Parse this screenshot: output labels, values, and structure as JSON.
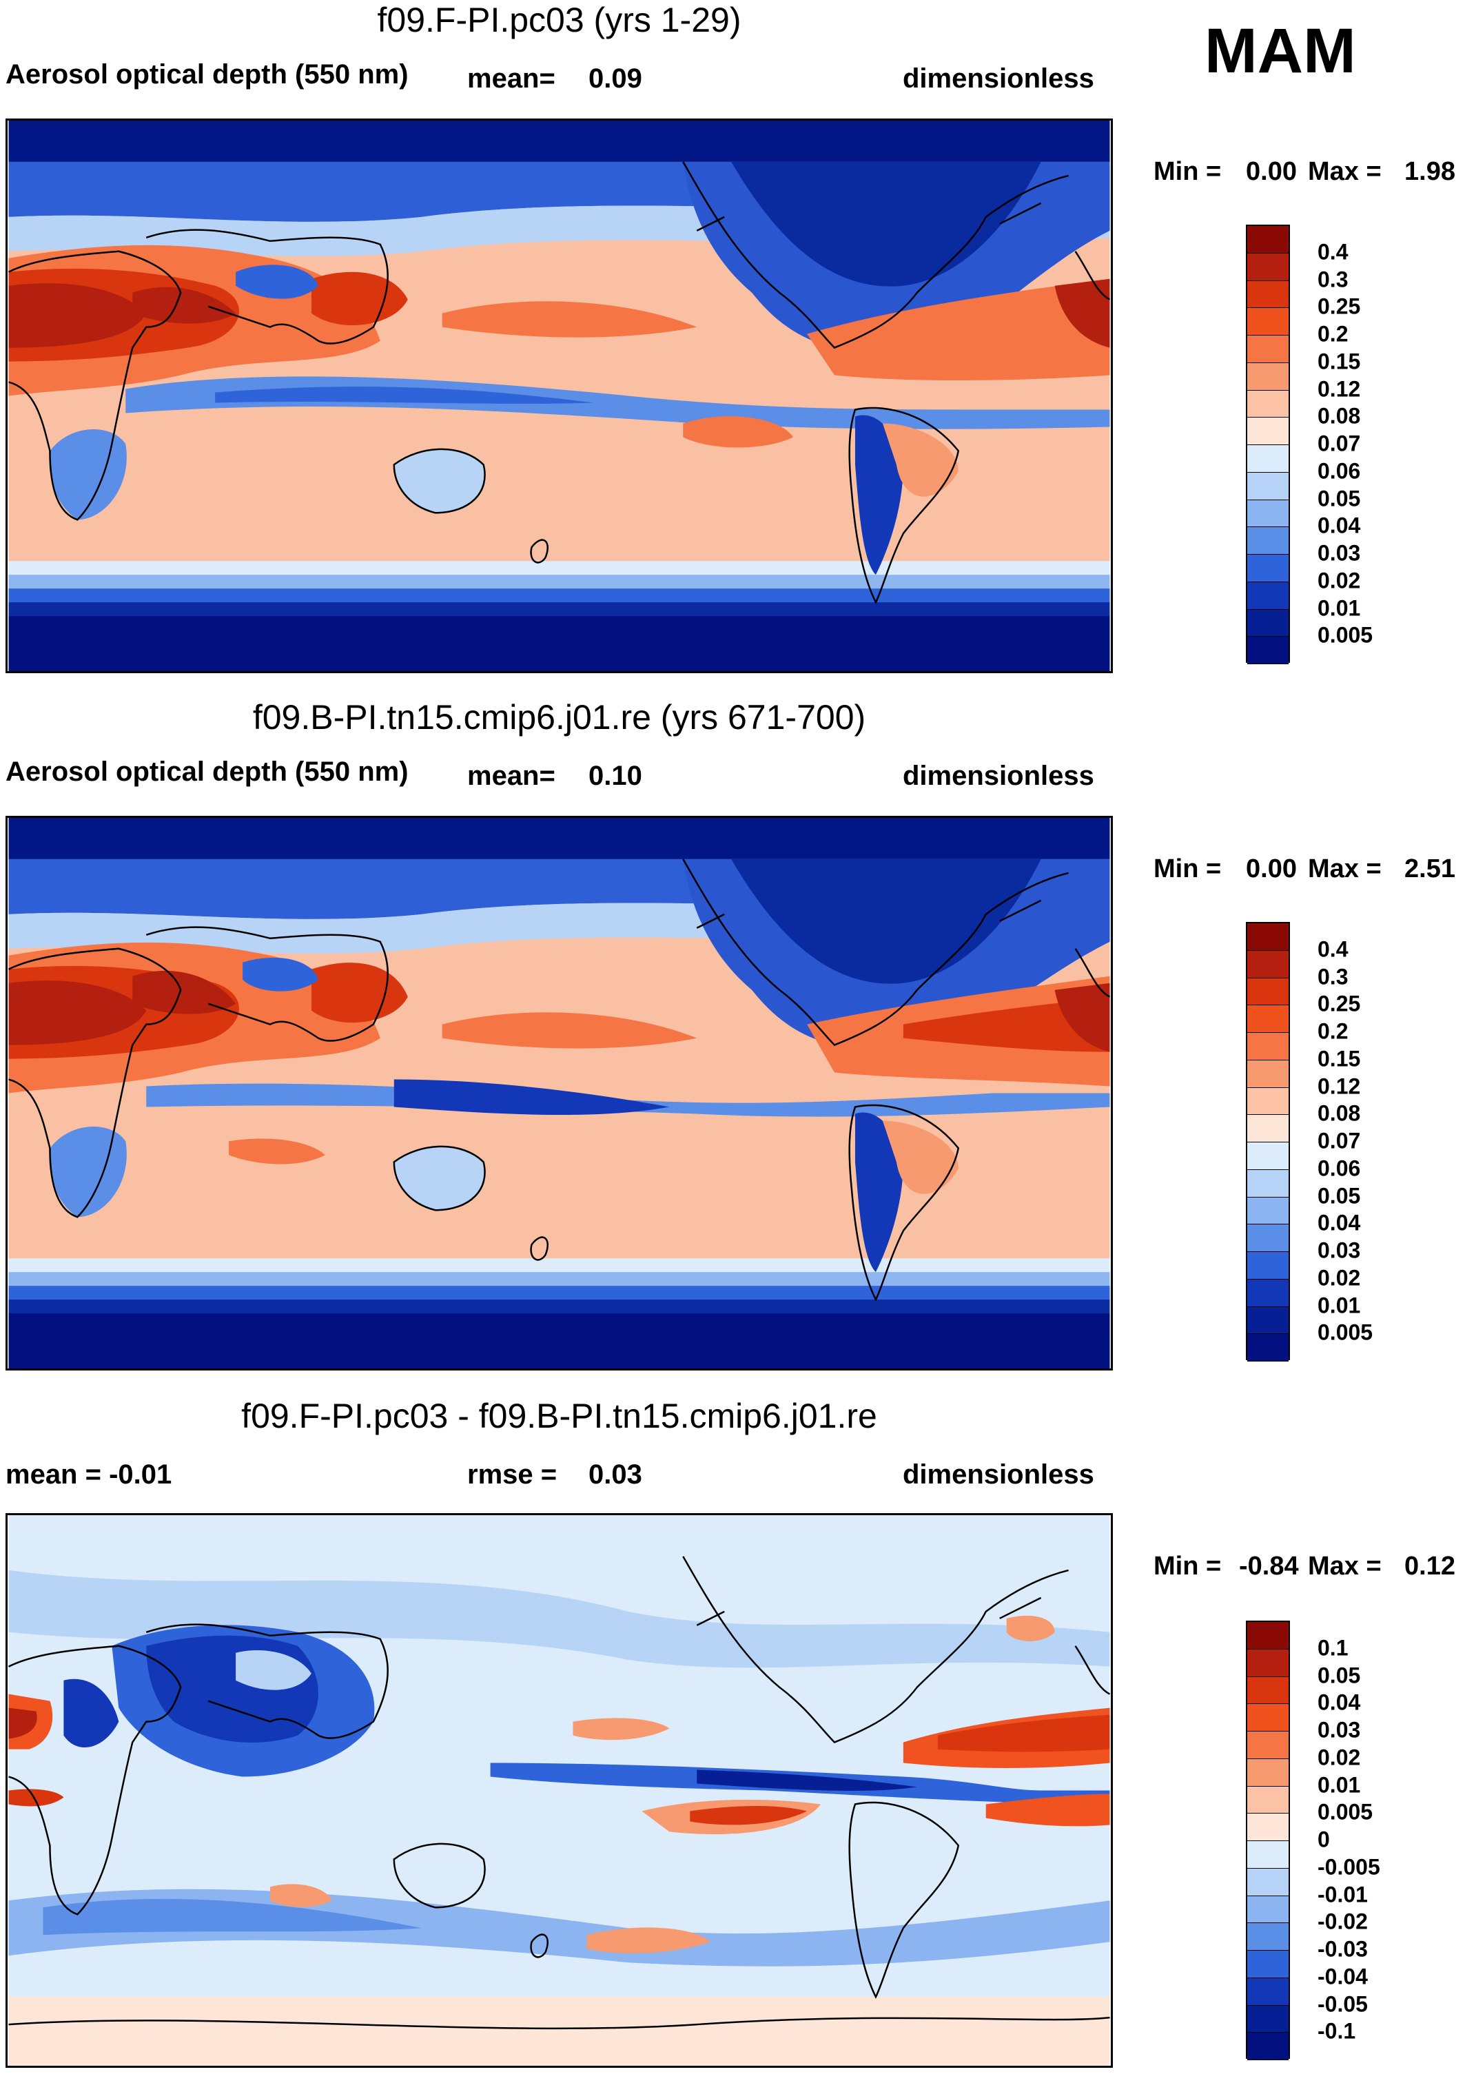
{
  "season": "MAM",
  "panels": [
    {
      "title": "f09.F-PI.pc03 (yrs 1-29)",
      "left": "Aerosol optical depth (550 nm)",
      "mid_label": "mean=",
      "mid_value": "0.09",
      "right": "dimensionless",
      "min_label": "Min =",
      "min_value": "0.00",
      "max_label": "Max =",
      "max_value": "1.98"
    },
    {
      "title": "f09.B-PI.tn15.cmip6.j01.re (yrs 671-700)",
      "left": "Aerosol optical depth (550 nm)",
      "mid_label": "mean=",
      "mid_value": "0.10",
      "right": "dimensionless",
      "min_label": "Min =",
      "min_value": "0.00",
      "max_label": "Max =",
      "max_value": "2.51"
    },
    {
      "title": "f09.F-PI.pc03 - f09.B-PI.tn15.cmip6.j01.re",
      "left": "mean =  -0.01",
      "mid_label": "rmse =",
      "mid_value": "0.03",
      "right": "dimensionless",
      "min_label": "Min =",
      "min_value": "-0.84",
      "max_label": "Max =",
      "max_value": "0.12"
    }
  ],
  "colorbar_abs": {
    "labels": [
      "0.4",
      "0.3",
      "0.25",
      "0.2",
      "0.15",
      "0.12",
      "0.08",
      "0.07",
      "0.06",
      "0.05",
      "0.04",
      "0.03",
      "0.02",
      "0.01",
      "0.005"
    ],
    "colors": [
      "#8b0a06",
      "#b3200f",
      "#d9360f",
      "#f0521e",
      "#f57544",
      "#f89a70",
      "#fbc2a6",
      "#fde6d8",
      "#dcecfb",
      "#b6d3f7",
      "#8cb4f0",
      "#5b8ee6",
      "#2f63d9",
      "#1238b8",
      "#071f95",
      "#021080"
    ]
  },
  "colorbar_diff": {
    "labels": [
      "0.1",
      "0.05",
      "0.04",
      "0.03",
      "0.02",
      "0.01",
      "0.005",
      "0",
      "-0.005",
      "-0.01",
      "-0.02",
      "-0.03",
      "-0.04",
      "-0.05",
      "-0.1"
    ],
    "colors": [
      "#8b0a06",
      "#b3200f",
      "#d9360f",
      "#f0521e",
      "#f57544",
      "#f89a70",
      "#fbc2a6",
      "#fde6d8",
      "#dcecfb",
      "#b6d3f7",
      "#8cb4f0",
      "#5b8ee6",
      "#2f63d9",
      "#1238b8",
      "#071f95",
      "#021080"
    ]
  }
}
